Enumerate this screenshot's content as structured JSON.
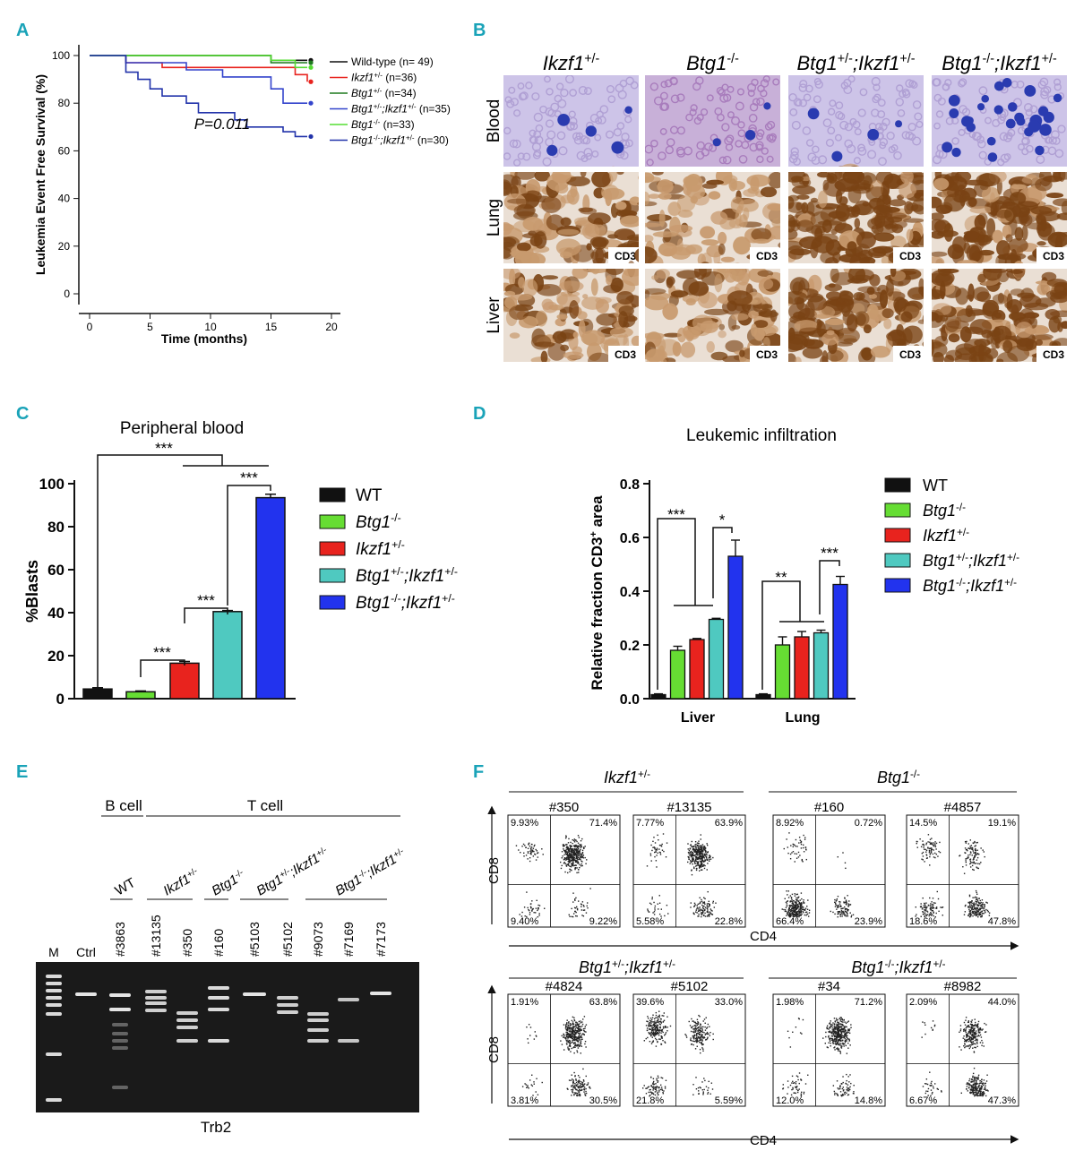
{
  "colors": {
    "panel_label": "#1aa3b8",
    "wt": "#111111",
    "btg1_ko": "#66dd33",
    "ikzf1_het": "#e8231e",
    "double_het": "#4fc9c0",
    "double_mut": "#2233ee",
    "gel_bg": "#1a1a1a",
    "gel_band": "#f0f0f0",
    "blood_bg": "#cdc4e8",
    "ihc_brown": "#7a4314",
    "ihc_bg": "#eadfd4"
  },
  "panels": {
    "a": "A",
    "b": "B",
    "c": "C",
    "d": "D",
    "e": "E",
    "f": "F"
  },
  "chart_data": [
    {
      "id": "A",
      "type": "line",
      "subtype": "kaplan-meier",
      "xlabel": "Time (months)",
      "ylabel": "Leukemia Event Free Survival (%)",
      "xlim": [
        0,
        20
      ],
      "ylim": [
        0,
        100
      ],
      "xticks": [
        "0",
        "5",
        "10",
        "15",
        "20"
      ],
      "yticks": [
        "0",
        "20",
        "40",
        "60",
        "80",
        "100"
      ],
      "annotation": "P=0.011",
      "series": [
        {
          "name": "Wild-type (n= 49)",
          "color": "#111111",
          "points": [
            [
              0,
              100
            ],
            [
              15,
              100
            ],
            [
              15,
              98
            ],
            [
              18,
              98
            ]
          ]
        },
        {
          "name": "Ikzf1+/- (n=36)",
          "color": "#e8231e",
          "points": [
            [
              0,
              100
            ],
            [
              3,
              100
            ],
            [
              3,
              97
            ],
            [
              6,
              97
            ],
            [
              6,
              95
            ],
            [
              17,
              95
            ],
            [
              17,
              92
            ],
            [
              18,
              92
            ],
            [
              18,
              89
            ]
          ]
        },
        {
          "name": "Btg1+/- (n=34)",
          "color": "#1e7a1e",
          "points": [
            [
              0,
              100
            ],
            [
              15,
              100
            ],
            [
              15,
              97
            ],
            [
              18,
              97
            ]
          ]
        },
        {
          "name": "Btg1+/-;Ikzf1+/- (n=35)",
          "color": "#3344cc",
          "points": [
            [
              0,
              100
            ],
            [
              3,
              100
            ],
            [
              3,
              97
            ],
            [
              8,
              97
            ],
            [
              8,
              94
            ],
            [
              11,
              94
            ],
            [
              11,
              91
            ],
            [
              15,
              91
            ],
            [
              15,
              86
            ],
            [
              16,
              86
            ],
            [
              16,
              80
            ],
            [
              18,
              80
            ]
          ]
        },
        {
          "name": "Btg1-/- (n=33)",
          "color": "#55dd33",
          "points": [
            [
              0,
              100
            ],
            [
              15,
              100
            ],
            [
              15,
              98
            ],
            [
              17,
              98
            ],
            [
              17,
              95
            ],
            [
              18,
              95
            ]
          ]
        },
        {
          "name": "Btg1-/-;Ikzf1+/- (n=30)",
          "color": "#2233aa",
          "points": [
            [
              0,
              100
            ],
            [
              3,
              100
            ],
            [
              3,
              93
            ],
            [
              4,
              93
            ],
            [
              4,
              90
            ],
            [
              5,
              90
            ],
            [
              5,
              86
            ],
            [
              6,
              86
            ],
            [
              6,
              83
            ],
            [
              8,
              83
            ],
            [
              8,
              80
            ],
            [
              9,
              80
            ],
            [
              9,
              76
            ],
            [
              12,
              76
            ],
            [
              12,
              73
            ],
            [
              13,
              73
            ],
            [
              13,
              70
            ],
            [
              16,
              70
            ],
            [
              16,
              68
            ],
            [
              17,
              68
            ],
            [
              17,
              66
            ],
            [
              18,
              66
            ]
          ]
        }
      ]
    },
    {
      "id": "C",
      "type": "bar",
      "title": "Peripheral blood",
      "ylabel": "%Blasts",
      "ylim": [
        0,
        100
      ],
      "yticks": [
        "0",
        "20",
        "40",
        "60",
        "80",
        "100"
      ],
      "categories": [
        "WT",
        "Btg1-/-",
        "Ikzf1+/-",
        "Btg1+/-;Ikzf1+/-",
        "Btg1-/-;Ikzf1+/-"
      ],
      "values": [
        4.5,
        3.2,
        16.5,
        40.5,
        93.5
      ],
      "errors": [
        0.6,
        0.4,
        0.8,
        0.5,
        1.6
      ],
      "significance": [
        "***",
        "***",
        "***",
        "***"
      ]
    },
    {
      "id": "D",
      "type": "bar",
      "title": "Leukemic infiltration",
      "ylabel": "Relative fraction CD3+ area",
      "ylim": [
        0,
        0.8
      ],
      "yticks": [
        "0.0",
        "0.2",
        "0.4",
        "0.6",
        "0.8"
      ],
      "groups": [
        "Liver",
        "Lung"
      ],
      "series": [
        {
          "name": "WT",
          "values": [
            0.015,
            0.015
          ],
          "errors": [
            0.003,
            0.003
          ]
        },
        {
          "name": "Btg1-/-",
          "values": [
            0.18,
            0.2
          ],
          "errors": [
            0.015,
            0.03
          ]
        },
        {
          "name": "Ikzf1+/-",
          "values": [
            0.22,
            0.23
          ],
          "errors": [
            0.004,
            0.02
          ]
        },
        {
          "name": "Btg1+/-;Ikzf1+/-",
          "values": [
            0.295,
            0.245
          ],
          "errors": [
            0.004,
            0.01
          ]
        },
        {
          "name": "Btg1-/-;Ikzf1+/-",
          "values": [
            0.53,
            0.425
          ],
          "errors": [
            0.06,
            0.03
          ]
        }
      ],
      "significance": [
        "***",
        "*",
        "**",
        "***"
      ]
    }
  ],
  "legend_c": {
    "wt": "WT",
    "btg1_ko": "Btg1",
    "btg1_ko_sup": "-/-",
    "ikzf1": "Ikzf1",
    "ikzf1_sup": "+/-",
    "dh_a": "Btg1",
    "dh_a_sup": "+/-",
    "dh_b": ";Ikzf1",
    "dh_b_sup": "+/-",
    "dm_a": "Btg1",
    "dm_a_sup": "-/-",
    "dm_b": ";Ikzf1",
    "dm_b_sup": "+/-"
  },
  "panel_b": {
    "columns": [
      {
        "a": "Ikzf1",
        "a_sup": "+/-",
        "b": "",
        "b_sup": ""
      },
      {
        "a": "Btg1",
        "a_sup": "-/-",
        "b": "",
        "b_sup": ""
      },
      {
        "a": "Btg1",
        "a_sup": "+/-",
        "b": ";Ikzf1",
        "b_sup": "+/-"
      },
      {
        "a": "Btg1",
        "a_sup": "-/-",
        "b": ";Ikzf1",
        "b_sup": "+/-"
      }
    ],
    "rows": [
      "Blood",
      "Lung",
      "Liver"
    ],
    "stain": "CD3"
  },
  "panel_e": {
    "group_b": "B cell",
    "group_t": "T cell",
    "geno_wt": "WT",
    "geno_ikzf1": "Ikzf1",
    "geno_ikzf1_sup": "+/-",
    "geno_btg1": "Btg1",
    "geno_btg1_sup": "-/-",
    "geno_dh_a": "Btg1",
    "geno_dh_a_sup": "+/-",
    "geno_dh_b": ";Ikzf1",
    "geno_dh_b_sup": "+/-",
    "geno_dm_a": "Btg1",
    "geno_dm_a_sup": "-/-",
    "geno_dm_b": ";Ikzf1",
    "geno_dm_b_sup": "+/-",
    "lanes": [
      "M",
      "Ctrl",
      "#3863",
      "#13135",
      "#350",
      "#160",
      "#5103",
      "#5102",
      "#9073",
      "#7169",
      "#7173"
    ],
    "gene": "Trb2"
  },
  "panel_f": {
    "axis_y": "CD8",
    "axis_x": "CD4",
    "groups": [
      {
        "a": "Ikzf1",
        "a_sup": "+/-",
        "b": "",
        "b_sup": ""
      },
      {
        "a": "Btg1",
        "a_sup": "-/-",
        "b": "",
        "b_sup": ""
      },
      {
        "a": "Btg1",
        "a_sup": "+/-",
        "b": ";Ikzf1",
        "b_sup": "+/-"
      },
      {
        "a": "Btg1",
        "a_sup": "-/-",
        "b": ";Ikzf1",
        "b_sup": "+/-"
      }
    ],
    "plots": [
      {
        "id": "#350",
        "q": [
          "9.93%",
          "71.4%",
          "9.40%",
          "9.22%"
        ]
      },
      {
        "id": "#13135",
        "q": [
          "7.77%",
          "63.9%",
          "5.58%",
          "22.8%"
        ]
      },
      {
        "id": "#160",
        "q": [
          "8.92%",
          "0.72%",
          "66.4%",
          "23.9%"
        ]
      },
      {
        "id": "#4857",
        "q": [
          "14.5%",
          "19.1%",
          "18.6%",
          "47.8%"
        ]
      },
      {
        "id": "#4824",
        "q": [
          "1.91%",
          "63.8%",
          "3.81%",
          "30.5%"
        ]
      },
      {
        "id": "#5102",
        "q": [
          "39.6%",
          "33.0%",
          "21.8%",
          "5.59%"
        ]
      },
      {
        "id": "#34",
        "q": [
          "1.98%",
          "71.2%",
          "12.0%",
          "14.8%"
        ]
      },
      {
        "id": "#8982",
        "q": [
          "2.09%",
          "44.0%",
          "6.67%",
          "47.3%"
        ]
      }
    ]
  }
}
